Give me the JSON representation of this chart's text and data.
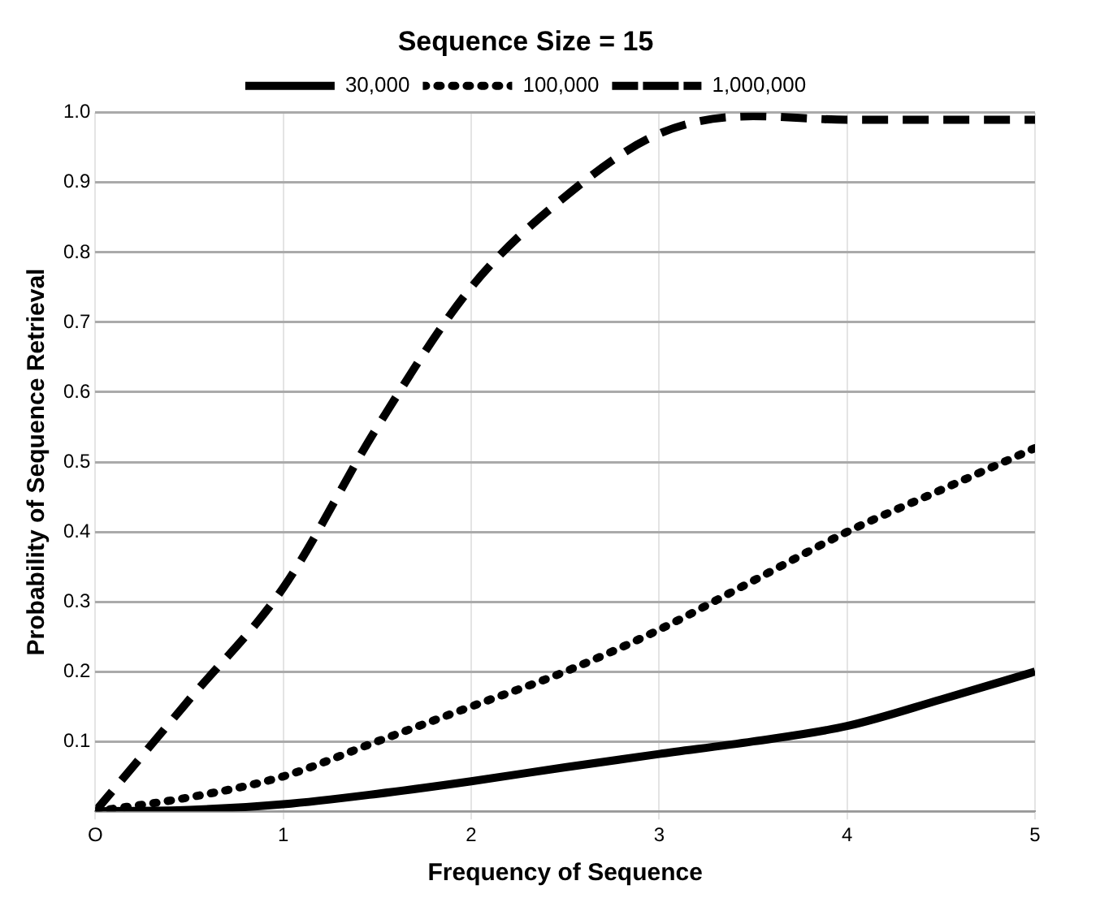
{
  "chart_data": {
    "type": "line",
    "title": "Sequence Size = 15",
    "xlabel": "Frequency of Sequence",
    "ylabel": "Probability of Sequence Retrieval",
    "x": [
      0,
      0.5,
      1,
      1.5,
      2,
      2.5,
      3,
      3.5,
      4,
      4.5,
      5
    ],
    "series": [
      {
        "name": "30,000",
        "color": "#000000",
        "line_style": "solid",
        "values": [
          0,
          0.002,
          0.01,
          0.025,
          0.043,
          0.063,
          0.082,
          0.1,
          0.122,
          0.16,
          0.2
        ]
      },
      {
        "name": "100,000",
        "color": "#000000",
        "line_style": "dotted",
        "values": [
          0,
          0.02,
          0.05,
          0.1,
          0.15,
          0.2,
          0.26,
          0.33,
          0.4,
          0.46,
          0.52
        ]
      },
      {
        "name": "1,000,000",
        "color": "#000000",
        "line_style": "dashed",
        "values": [
          0,
          0.16,
          0.32,
          0.55,
          0.75,
          0.88,
          0.97,
          0.995,
          0.99,
          0.99,
          0.99
        ]
      }
    ],
    "xlim": [
      0,
      5
    ],
    "xticks": [
      {
        "value": 0,
        "label": "O"
      },
      1,
      2,
      3,
      4,
      5
    ],
    "ylim": [
      0,
      1
    ],
    "yticks": [
      {
        "value": 0,
        "label": null
      },
      0.1,
      0.2,
      0.3,
      0.4,
      0.5,
      0.6,
      0.7,
      0.8,
      0.9,
      {
        "value": 1,
        "label": "1.0"
      }
    ],
    "grid": true,
    "legend": "top",
    "marker": "none"
  }
}
